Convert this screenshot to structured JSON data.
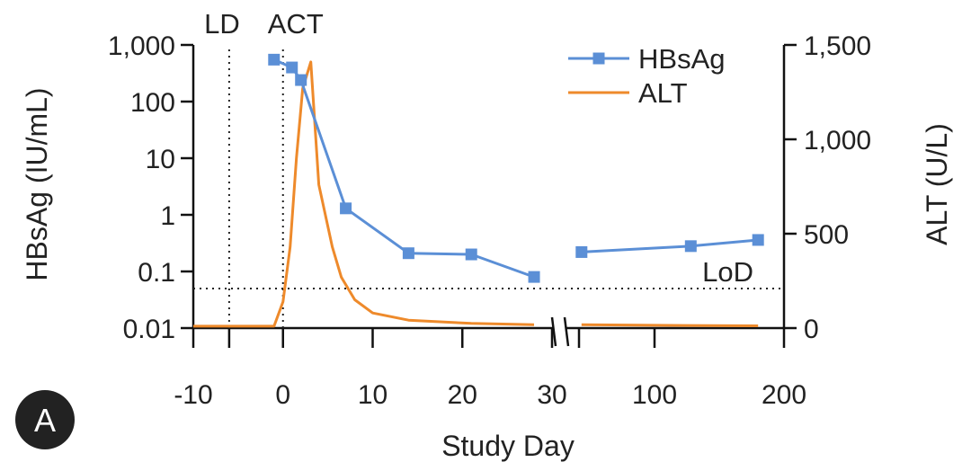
{
  "chart_data": {
    "type": "line",
    "panel_label": "A",
    "xlabel": "Study Day",
    "ylabel_left": "HBsAg (IU/mL)",
    "ylabel_right": "ALT (U/L)",
    "y_left_scale": "log",
    "y_left_ticks": [
      "1,000",
      "100",
      "10",
      "1",
      "0.1",
      "0.01"
    ],
    "y_left_tick_values": [
      1000,
      100,
      10,
      1,
      0.1,
      0.01
    ],
    "y_right_ticks": [
      "1,500",
      "1,000",
      "500",
      "0"
    ],
    "y_right_tick_values": [
      1500,
      1000,
      500,
      0
    ],
    "x_axis_break": "between 30 and 100",
    "x_ticks": [
      "-10",
      "0",
      "10",
      "20",
      "30",
      "100",
      "200"
    ],
    "x_tick_values": [
      -10,
      0,
      10,
      20,
      30,
      100,
      200
    ],
    "annotations": [
      {
        "id": "ld",
        "text": "LD",
        "x": -6
      },
      {
        "id": "act",
        "text": "ACT",
        "x": 0
      },
      {
        "id": "lod",
        "text": "LoD",
        "y": 0.05
      }
    ],
    "reference_lines": {
      "LD_day": -6,
      "ACT_day": 0,
      "LoD": 0.05
    },
    "legend_position": "top-right",
    "series": [
      {
        "name": "HBsAg",
        "axis": "left",
        "color": "#5b8fd6",
        "marker": "square",
        "x": [
          -1,
          1,
          2,
          7,
          14,
          21,
          28,
          42,
          128,
          180
        ],
        "y": [
          550,
          400,
          240,
          1.3,
          0.21,
          0.2,
          0.08,
          0.22,
          0.28,
          0.36
        ]
      },
      {
        "name": "ALT",
        "axis": "right",
        "color": "#ee8a2b",
        "marker": "none",
        "x": [
          -10,
          -1,
          0,
          0.8,
          1.5,
          2.2,
          3.1,
          4,
          5.5,
          6.5,
          8,
          10,
          14,
          21,
          28,
          42,
          100,
          180
        ],
        "y": [
          10,
          10,
          140,
          430,
          900,
          1270,
          1410,
          760,
          430,
          270,
          150,
          80,
          42,
          25,
          18,
          18,
          15,
          12
        ]
      }
    ]
  }
}
